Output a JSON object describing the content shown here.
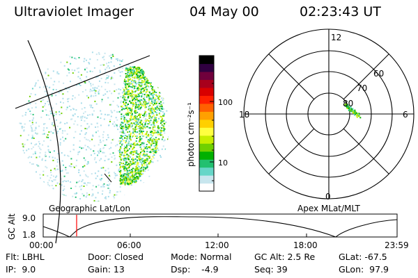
{
  "header": {
    "instrument": "Ultraviolet Imager",
    "date": "04 May 00",
    "time": "02:23:43 UT"
  },
  "colorbar": {
    "unit_label": "photon cm⁻²s⁻¹",
    "tick_100": "100",
    "tick_10": "10",
    "colors": [
      "#ffffff",
      "#c8e6ee",
      "#66d6c8",
      "#22c070",
      "#00b000",
      "#70d000",
      "#c8ee00",
      "#ffff40",
      "#ffd000",
      "#ffa000",
      "#ff6000",
      "#ff2000",
      "#d80000",
      "#a8001c",
      "#70003c",
      "#300040",
      "#000000"
    ]
  },
  "polar_plot": {
    "mlt_labels": {
      "top": "12",
      "bottom": "0",
      "left": "18",
      "right": "6"
    },
    "lat_labels": [
      "60",
      "70",
      "80"
    ]
  },
  "panel_labels": {
    "left": "Geographic Lat/Lon",
    "right": "Apex MLat/MLT"
  },
  "altitude_strip": {
    "axis_label": "GC Alt",
    "y_max": "9.0",
    "y_min": "1.8",
    "time_ticks": [
      "00:00",
      "06:00",
      "12:00",
      "18:00",
      "23:59"
    ],
    "current_time_color": "#ff0000"
  },
  "info": {
    "filter": "Flt: LBHL",
    "ip": "IP:  9.0",
    "door": "Door: Closed",
    "gain": "Gain: 13",
    "mode": "Mode: Normal",
    "dsp": "Dsp:    -4.9",
    "gc_alt": "GC Alt: 2.5 Re",
    "seq": "Seq: 39",
    "glat": "GLat: -67.5",
    "glon": "GLon:  97.9"
  }
}
